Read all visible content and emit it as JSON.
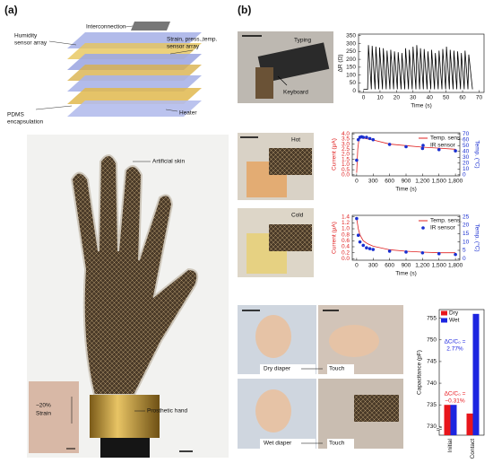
{
  "figure": {
    "panel_a": {
      "label": "(a)",
      "layers": {
        "humidity": [
          "Humidity",
          "sensor array"
        ],
        "interconnection": "Interconnection",
        "sensor": [
          "Strain, press.,temp.",
          "sensor array"
        ],
        "encapsulation": [
          "PDMS",
          "encapsulation"
        ],
        "heater": "Heater"
      },
      "photo": {
        "skin": "Artificial skin",
        "hand": "Prosthetic hand",
        "inset": [
          "~20%",
          "Strain"
        ]
      }
    },
    "panel_b": {
      "label": "(b)",
      "typing": "Typing",
      "keyboard": "Keyboard",
      "hot": "Hot",
      "cold": "Cold",
      "dry": "Dry diaper",
      "wet": "Wet diaper",
      "touch_dry": "Touch",
      "touch_wet": "Touch"
    }
  },
  "chart_data": [
    {
      "type": "line",
      "xlabel": "Time (s)",
      "ylabel": "ΔR (Ω)",
      "xlim": [
        -3,
        73
      ],
      "ylim": [
        -10,
        360
      ],
      "xticks": [
        0,
        10,
        20,
        30,
        40,
        50,
        60,
        70
      ],
      "yticks": [
        0,
        50,
        100,
        150,
        200,
        250,
        300,
        350
      ],
      "series": [
        {
          "color": "#000000",
          "style": "line",
          "x": [
            0,
            2.5,
            3,
            4.75,
            5.25,
            7,
            7.5,
            9.25,
            9.75,
            11.5,
            12,
            13.75,
            14.25,
            16,
            16.5,
            18.25,
            18.75,
            20.5,
            21,
            22.75,
            23.25,
            25,
            25.5,
            27.25,
            27.75,
            29.5,
            30,
            31.75,
            32.25,
            34,
            34.5,
            36.25,
            36.75,
            38.5,
            39,
            40.75,
            41.25,
            43,
            43.5,
            45.25,
            45.75,
            47.5,
            48,
            49.75,
            50.25,
            52,
            52.5,
            54.25,
            54.75,
            56.5,
            57,
            58.75,
            59.25,
            61,
            61.5,
            63.25,
            63.75,
            66
          ],
          "values": [
            10,
            10,
            290,
            10,
            285,
            10,
            280,
            10,
            275,
            10,
            270,
            10,
            255,
            10,
            260,
            10,
            250,
            10,
            245,
            10,
            240,
            10,
            270,
            10,
            260,
            10,
            280,
            10,
            290,
            10,
            270,
            10,
            265,
            10,
            250,
            10,
            260,
            10,
            240,
            10,
            255,
            10,
            265,
            10,
            280,
            10,
            260,
            10,
            255,
            10,
            250,
            10,
            240,
            10,
            255,
            10,
            230,
            10
          ]
        }
      ]
    },
    {
      "type": "line",
      "xlabel": "Time (s)",
      "ylabel": "Current (μA)",
      "y2label": "Temp. (°C)",
      "ycolor": "#e02020",
      "y2color": "#1a2fd0",
      "legend": true,
      "xlim": [
        -80,
        1880
      ],
      "ylim": [
        -0.1,
        4.1
      ],
      "y2lim": [
        -1.75,
        71.75
      ],
      "xticks": [
        0,
        300,
        600,
        900,
        {
          "value": 1200,
          "label": "1,200"
        },
        {
          "value": 1500,
          "label": "1,500"
        },
        {
          "value": 1800,
          "label": "1,800"
        }
      ],
      "yticks": [
        {
          "value": 0,
          "label": "0.0"
        },
        0.5,
        {
          "value": 1,
          "label": "1.0"
        },
        1.5,
        {
          "value": 2,
          "label": "2.0"
        },
        2.5,
        {
          "value": 3,
          "label": "3.0"
        },
        3.5,
        {
          "value": 4,
          "label": "4.0"
        }
      ],
      "y2ticks": [
        0,
        10,
        20,
        30,
        40,
        50,
        60,
        70
      ],
      "series": [
        {
          "name": "Temp. sens.",
          "color": "#e02020",
          "style": "line",
          "x": [
            0,
            20,
            40,
            60,
            100,
            200,
            300,
            600,
            900,
            1200,
            1500,
            1800
          ],
          "values": [
            0.2,
            2.5,
            3.4,
            3.6,
            3.6,
            3.5,
            3.4,
            3.0,
            2.85,
            2.7,
            2.6,
            2.5
          ]
        },
        {
          "name": "IR sensor",
          "color": "#1a2fd0",
          "style": "markers",
          "axis": "y2",
          "x": [
            0,
            30,
            60,
            90,
            120,
            180,
            240,
            300,
            600,
            900,
            1200,
            1500,
            1800
          ],
          "values": [
            25,
            60,
            64,
            65,
            64,
            64,
            62,
            60,
            52,
            48,
            45,
            43,
            41
          ]
        }
      ]
    },
    {
      "type": "line",
      "xlabel": "Time (s)",
      "ylabel": "Current (μA)",
      "y2label": "Temp. (°C)",
      "ycolor": "#e02020",
      "y2color": "#1a2fd0",
      "legend": true,
      "xlim": [
        -80,
        1880
      ],
      "ylim": [
        -0.05,
        1.45
      ],
      "y2lim": [
        -0.9,
        25.9
      ],
      "xticks": [
        0,
        300,
        600,
        900,
        {
          "value": 1200,
          "label": "1,200"
        },
        {
          "value": 1500,
          "label": "1,500"
        },
        {
          "value": 1800,
          "label": "1,800"
        }
      ],
      "yticks": [
        {
          "value": 0,
          "label": "0.0"
        },
        0.2,
        0.4,
        0.6,
        0.8,
        {
          "value": 1,
          "label": "1.0"
        },
        1.2,
        1.4
      ],
      "y2ticks": [
        0,
        5,
        10,
        15,
        20,
        25
      ],
      "series": [
        {
          "name": "Temp. sens.",
          "color": "#e02020",
          "style": "line",
          "x": [
            0,
            30,
            60,
            120,
            200,
            300,
            600,
            900,
            1200,
            1500,
            1800
          ],
          "values": [
            1.35,
            1.0,
            0.8,
            0.6,
            0.5,
            0.42,
            0.3,
            0.25,
            0.22,
            0.2,
            0.2
          ]
        },
        {
          "name": "IR sensor",
          "color": "#1a2fd0",
          "style": "markers",
          "axis": "y2",
          "x": [
            0,
            30,
            60,
            120,
            180,
            240,
            300,
            600,
            900,
            1200,
            1500,
            1800
          ],
          "values": [
            24,
            14,
            10,
            8,
            6.5,
            6,
            5.5,
            4.5,
            4,
            3.5,
            3,
            2.5
          ]
        }
      ]
    },
    {
      "type": "bar",
      "ylabel": "Capacitance (pF)",
      "categories": [
        "Initial",
        "Contact"
      ],
      "ylim": [
        728,
        757
      ],
      "yticks": [
        730,
        735,
        740,
        745,
        750,
        755
      ],
      "legend": true,
      "series": [
        {
          "name": "Dry",
          "color": "#e8151b",
          "values": [
            735,
            733
          ]
        },
        {
          "name": "Wet",
          "color": "#1c25e0",
          "values": [
            735,
            756
          ]
        }
      ],
      "annotations": [
        {
          "lines": [
            "ΔC/C₀ =",
            "2.77%"
          ],
          "color": "#1c25e0"
        },
        {
          "lines": [
            "ΔC/C₀ =",
            "−0.31%"
          ],
          "color": "#e8151b"
        }
      ]
    }
  ]
}
